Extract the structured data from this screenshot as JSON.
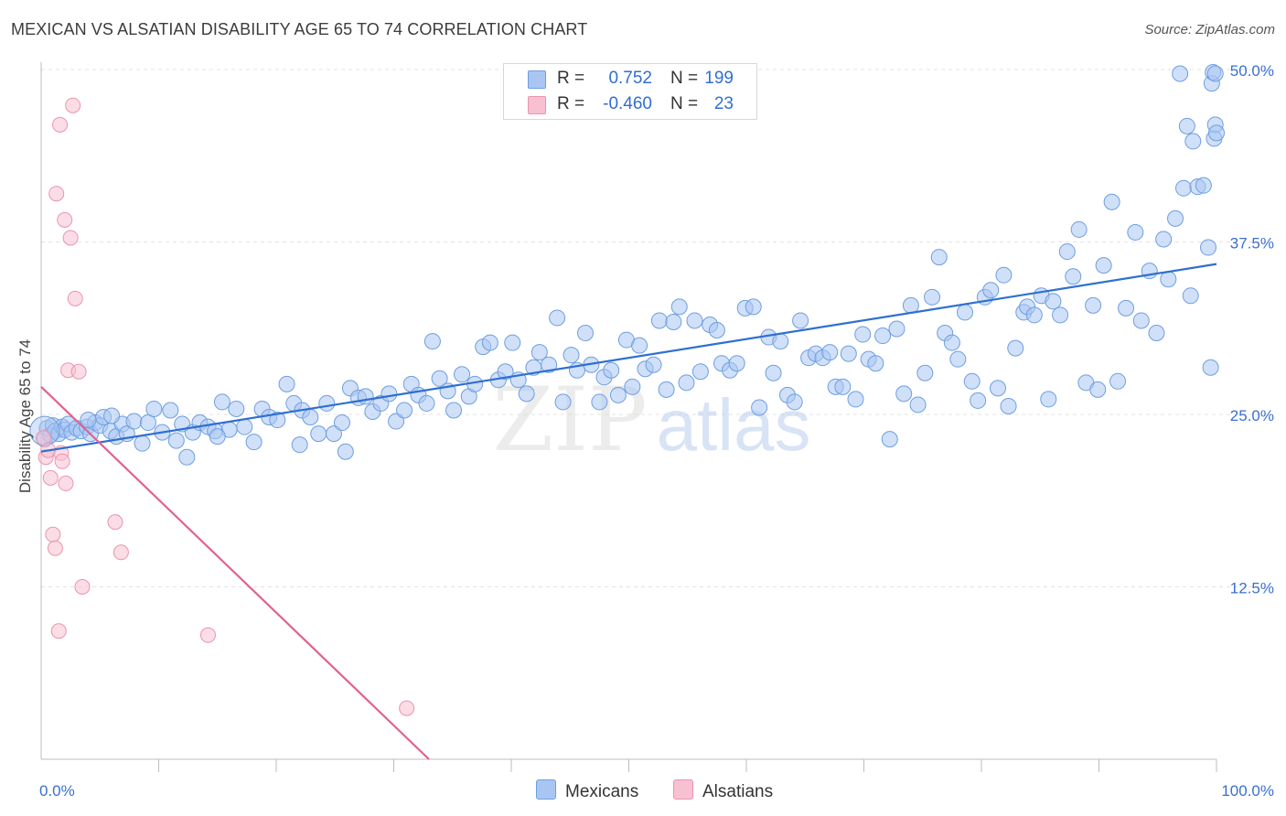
{
  "title": "MEXICAN VS ALSATIAN DISABILITY AGE 65 TO 74 CORRELATION CHART",
  "source": "Source: ZipAtlas.com",
  "watermark": {
    "zip": "ZIP",
    "atlas": "atlas"
  },
  "colors": {
    "mexicans_fill": "#a9c6f2",
    "mexicans_stroke": "#6e9ee0",
    "mexicans_line": "#2f6fd1",
    "alsatians_fill": "#f7c1d1",
    "alsatians_stroke": "#eb93b0",
    "alsatians_line": "#e0628f",
    "tick_label": "#3a6fd0",
    "grid": "#e3e3e3"
  },
  "stats": [
    {
      "r_label": "R =",
      "r_value": "0.752",
      "n_label": "N =",
      "n_value": "199"
    },
    {
      "r_label": "R =",
      "r_value": "-0.460",
      "n_label": "N =",
      "n_value": "23"
    }
  ],
  "legend": [
    {
      "label": "Mexicans"
    },
    {
      "label": "Alsatians"
    }
  ],
  "chart_data": {
    "type": "scatter",
    "title": "MEXICAN VS ALSATIAN DISABILITY AGE 65 TO 74 CORRELATION CHART",
    "xlabel": "",
    "ylabel": "Disability Age 65 to 74",
    "xlim": [
      0,
      100
    ],
    "ylim": [
      0,
      50
    ],
    "x_tick_labels": [
      "0.0%",
      "100.0%"
    ],
    "y_ticks": [
      12.5,
      25.0,
      37.5,
      50.0
    ],
    "y_tick_labels": [
      "12.5%",
      "25.0%",
      "37.5%",
      "50.0%"
    ],
    "grid": "horizontal dashed",
    "legend_position": "bottom-center",
    "series": [
      {
        "name": "Mexicans",
        "trend": [
          [
            0,
            22.3
          ],
          [
            100,
            35.9
          ]
        ],
        "points": [
          [
            0.3,
            23.2
          ],
          [
            0.5,
            24.0
          ],
          [
            0.8,
            23.5
          ],
          [
            1.0,
            24.2
          ],
          [
            1.2,
            23.8
          ],
          [
            1.5,
            23.6
          ],
          [
            1.8,
            24.1
          ],
          [
            2.0,
            23.9
          ],
          [
            2.3,
            24.3
          ],
          [
            2.6,
            23.7
          ],
          [
            3.0,
            24.0
          ],
          [
            3.4,
            23.8
          ],
          [
            3.9,
            24.1
          ],
          [
            4.2,
            23.6
          ],
          [
            4.6,
            24.4
          ],
          [
            5.0,
            24.2
          ],
          [
            5.3,
            24.8
          ],
          [
            5.9,
            23.8
          ],
          [
            6.4,
            23.4
          ],
          [
            6.9,
            24.3
          ],
          [
            7.3,
            23.6
          ],
          [
            7.9,
            24.5
          ],
          [
            8.6,
            22.9
          ],
          [
            9.1,
            24.4
          ],
          [
            9.6,
            25.4
          ],
          [
            10.3,
            23.7
          ],
          [
            11.0,
            25.3
          ],
          [
            11.5,
            23.1
          ],
          [
            12.0,
            24.3
          ],
          [
            12.4,
            21.9
          ],
          [
            12.9,
            23.7
          ],
          [
            13.5,
            24.4
          ],
          [
            14.2,
            24.1
          ],
          [
            14.8,
            23.8
          ],
          [
            15.4,
            25.9
          ],
          [
            16.0,
            23.9
          ],
          [
            16.6,
            25.4
          ],
          [
            17.3,
            24.1
          ],
          [
            18.1,
            23.0
          ],
          [
            18.8,
            25.4
          ],
          [
            19.4,
            24.8
          ],
          [
            20.1,
            24.6
          ],
          [
            20.9,
            27.2
          ],
          [
            21.5,
            25.8
          ],
          [
            22.2,
            25.3
          ],
          [
            22.9,
            24.8
          ],
          [
            23.6,
            23.6
          ],
          [
            24.3,
            25.8
          ],
          [
            24.9,
            23.6
          ],
          [
            25.6,
            24.4
          ],
          [
            25.9,
            22.3
          ],
          [
            26.3,
            26.9
          ],
          [
            27.0,
            26.2
          ],
          [
            27.6,
            26.3
          ],
          [
            28.2,
            25.2
          ],
          [
            28.9,
            25.8
          ],
          [
            29.6,
            26.5
          ],
          [
            30.2,
            24.5
          ],
          [
            30.9,
            25.3
          ],
          [
            31.5,
            27.2
          ],
          [
            32.1,
            26.4
          ],
          [
            32.8,
            25.8
          ],
          [
            33.3,
            30.3
          ],
          [
            33.9,
            27.6
          ],
          [
            34.6,
            26.7
          ],
          [
            35.1,
            25.3
          ],
          [
            35.8,
            27.9
          ],
          [
            36.4,
            26.3
          ],
          [
            36.9,
            27.2
          ],
          [
            37.6,
            29.9
          ],
          [
            38.2,
            30.2
          ],
          [
            38.9,
            27.5
          ],
          [
            39.5,
            28.1
          ],
          [
            40.1,
            30.2
          ],
          [
            40.6,
            27.5
          ],
          [
            41.3,
            26.5
          ],
          [
            41.9,
            28.4
          ],
          [
            42.4,
            29.5
          ],
          [
            43.2,
            28.6
          ],
          [
            43.9,
            32.0
          ],
          [
            44.4,
            25.9
          ],
          [
            45.1,
            29.3
          ],
          [
            45.6,
            28.2
          ],
          [
            46.3,
            30.9
          ],
          [
            46.8,
            28.6
          ],
          [
            47.5,
            25.9
          ],
          [
            47.9,
            27.7
          ],
          [
            48.5,
            28.2
          ],
          [
            49.1,
            26.4
          ],
          [
            49.8,
            30.4
          ],
          [
            50.3,
            27.0
          ],
          [
            50.9,
            30.0
          ],
          [
            51.4,
            28.3
          ],
          [
            52.1,
            28.6
          ],
          [
            52.6,
            31.8
          ],
          [
            53.2,
            26.8
          ],
          [
            53.8,
            31.7
          ],
          [
            54.3,
            32.8
          ],
          [
            54.9,
            27.3
          ],
          [
            55.6,
            31.8
          ],
          [
            56.1,
            28.1
          ],
          [
            56.9,
            31.5
          ],
          [
            57.5,
            31.1
          ],
          [
            57.9,
            28.7
          ],
          [
            58.6,
            28.2
          ],
          [
            59.2,
            28.7
          ],
          [
            59.9,
            32.7
          ],
          [
            60.6,
            32.8
          ],
          [
            61.1,
            25.5
          ],
          [
            61.9,
            30.6
          ],
          [
            62.3,
            28.0
          ],
          [
            62.9,
            30.3
          ],
          [
            63.5,
            26.4
          ],
          [
            64.1,
            25.9
          ],
          [
            64.6,
            31.8
          ],
          [
            65.3,
            29.1
          ],
          [
            65.9,
            29.4
          ],
          [
            66.5,
            29.1
          ],
          [
            67.1,
            29.5
          ],
          [
            67.6,
            27.0
          ],
          [
            68.2,
            27.0
          ],
          [
            68.7,
            29.4
          ],
          [
            69.3,
            26.1
          ],
          [
            69.9,
            30.8
          ],
          [
            70.4,
            29.0
          ],
          [
            71.0,
            28.7
          ],
          [
            71.6,
            30.7
          ],
          [
            72.2,
            23.2
          ],
          [
            72.8,
            31.2
          ],
          [
            73.4,
            26.5
          ],
          [
            74.0,
            32.9
          ],
          [
            74.6,
            25.7
          ],
          [
            75.2,
            28.0
          ],
          [
            75.8,
            33.5
          ],
          [
            76.4,
            36.4
          ],
          [
            76.9,
            30.9
          ],
          [
            77.5,
            30.2
          ],
          [
            78.0,
            29.0
          ],
          [
            78.6,
            32.4
          ],
          [
            79.2,
            27.4
          ],
          [
            79.7,
            26.0
          ],
          [
            80.3,
            33.5
          ],
          [
            80.8,
            34.0
          ],
          [
            81.4,
            26.9
          ],
          [
            81.9,
            35.1
          ],
          [
            82.3,
            25.6
          ],
          [
            82.9,
            29.8
          ],
          [
            83.6,
            32.4
          ],
          [
            83.9,
            32.8
          ],
          [
            84.5,
            32.2
          ],
          [
            85.1,
            33.6
          ],
          [
            85.7,
            26.1
          ],
          [
            86.1,
            33.2
          ],
          [
            86.7,
            32.2
          ],
          [
            87.3,
            36.8
          ],
          [
            87.8,
            35.0
          ],
          [
            88.3,
            38.4
          ],
          [
            88.9,
            27.3
          ],
          [
            89.5,
            32.9
          ],
          [
            89.9,
            26.8
          ],
          [
            90.4,
            35.8
          ],
          [
            91.1,
            40.4
          ],
          [
            91.6,
            27.4
          ],
          [
            92.3,
            32.7
          ],
          [
            93.1,
            38.2
          ],
          [
            93.6,
            31.8
          ],
          [
            94.3,
            35.4
          ],
          [
            94.9,
            30.9
          ],
          [
            95.5,
            37.7
          ],
          [
            95.9,
            34.8
          ],
          [
            96.5,
            39.2
          ],
          [
            97.2,
            41.4
          ],
          [
            97.8,
            33.6
          ],
          [
            98.4,
            41.5
          ],
          [
            98.9,
            41.6
          ],
          [
            99.3,
            37.1
          ],
          [
            99.6,
            49.0
          ],
          [
            99.8,
            45.0
          ],
          [
            99.9,
            46.0
          ],
          [
            100.0,
            45.4
          ],
          [
            99.7,
            49.8
          ],
          [
            99.9,
            49.7
          ],
          [
            99.5,
            28.4
          ],
          [
            98.0,
            44.8
          ],
          [
            97.5,
            45.9
          ],
          [
            96.9,
            49.7
          ],
          [
            22.0,
            22.8
          ],
          [
            15.0,
            23.4
          ],
          [
            6.0,
            24.9
          ],
          [
            4.0,
            24.6
          ]
        ]
      },
      {
        "name": "Alsatians",
        "trend": [
          [
            0,
            27.0
          ],
          [
            33,
            0.0
          ]
        ],
        "points": [
          [
            0.2,
            23.3
          ],
          [
            0.4,
            21.9
          ],
          [
            0.6,
            22.4
          ],
          [
            0.8,
            20.4
          ],
          [
            1.0,
            16.3
          ],
          [
            1.2,
            15.3
          ],
          [
            1.3,
            41.0
          ],
          [
            1.5,
            9.3
          ],
          [
            1.6,
            46.0
          ],
          [
            1.7,
            22.2
          ],
          [
            1.8,
            21.6
          ],
          [
            2.0,
            39.1
          ],
          [
            2.1,
            20.0
          ],
          [
            2.3,
            28.2
          ],
          [
            2.5,
            37.8
          ],
          [
            2.7,
            47.4
          ],
          [
            2.9,
            33.4
          ],
          [
            3.2,
            28.1
          ],
          [
            3.5,
            12.5
          ],
          [
            6.3,
            17.2
          ],
          [
            6.8,
            15.0
          ],
          [
            14.2,
            9.0
          ],
          [
            31.1,
            3.7
          ]
        ]
      }
    ]
  }
}
